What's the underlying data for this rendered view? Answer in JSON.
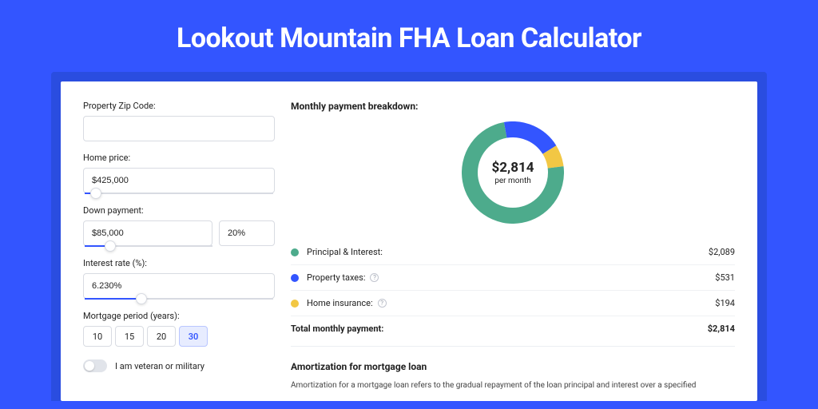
{
  "page": {
    "title": "Lookout Mountain FHA Loan Calculator",
    "background_color": "#3355ff",
    "backdrop_color": "#2a4de0",
    "card_color": "#ffffff"
  },
  "form": {
    "zip": {
      "label": "Property Zip Code:",
      "value": ""
    },
    "home_price": {
      "label": "Home price:",
      "value": "$425,000",
      "slider_pct": 6
    },
    "down_payment": {
      "label": "Down payment:",
      "amount": "$85,000",
      "percent": "20%",
      "slider_pct": 20
    },
    "interest_rate": {
      "label": "Interest rate (%):",
      "value": "6.230%",
      "slider_pct": 30
    },
    "period": {
      "label": "Mortgage period (years):",
      "options": [
        "10",
        "15",
        "20",
        "30"
      ],
      "selected": "30"
    },
    "veteran": {
      "label": "I am veteran or military",
      "on": false
    }
  },
  "breakdown": {
    "title": "Monthly payment breakdown:",
    "center_amount": "$2,814",
    "center_sub": "per month",
    "donut": {
      "size": 128,
      "thickness": 20,
      "slices": [
        {
          "label": "Principal & Interest:",
          "value": "$2,089",
          "color": "#4dab8c",
          "pct": 74.2,
          "has_info": false
        },
        {
          "label": "Property taxes:",
          "value": "$531",
          "color": "#3355ff",
          "pct": 18.9,
          "has_info": true
        },
        {
          "label": "Home insurance:",
          "value": "$194",
          "color": "#f2c744",
          "pct": 6.9,
          "has_info": true
        }
      ]
    },
    "total": {
      "label": "Total monthly payment:",
      "value": "$2,814"
    }
  },
  "amortization": {
    "title": "Amortization for mortgage loan",
    "text": "Amortization for a mortgage loan refers to the gradual repayment of the loan principal and interest over a specified"
  }
}
